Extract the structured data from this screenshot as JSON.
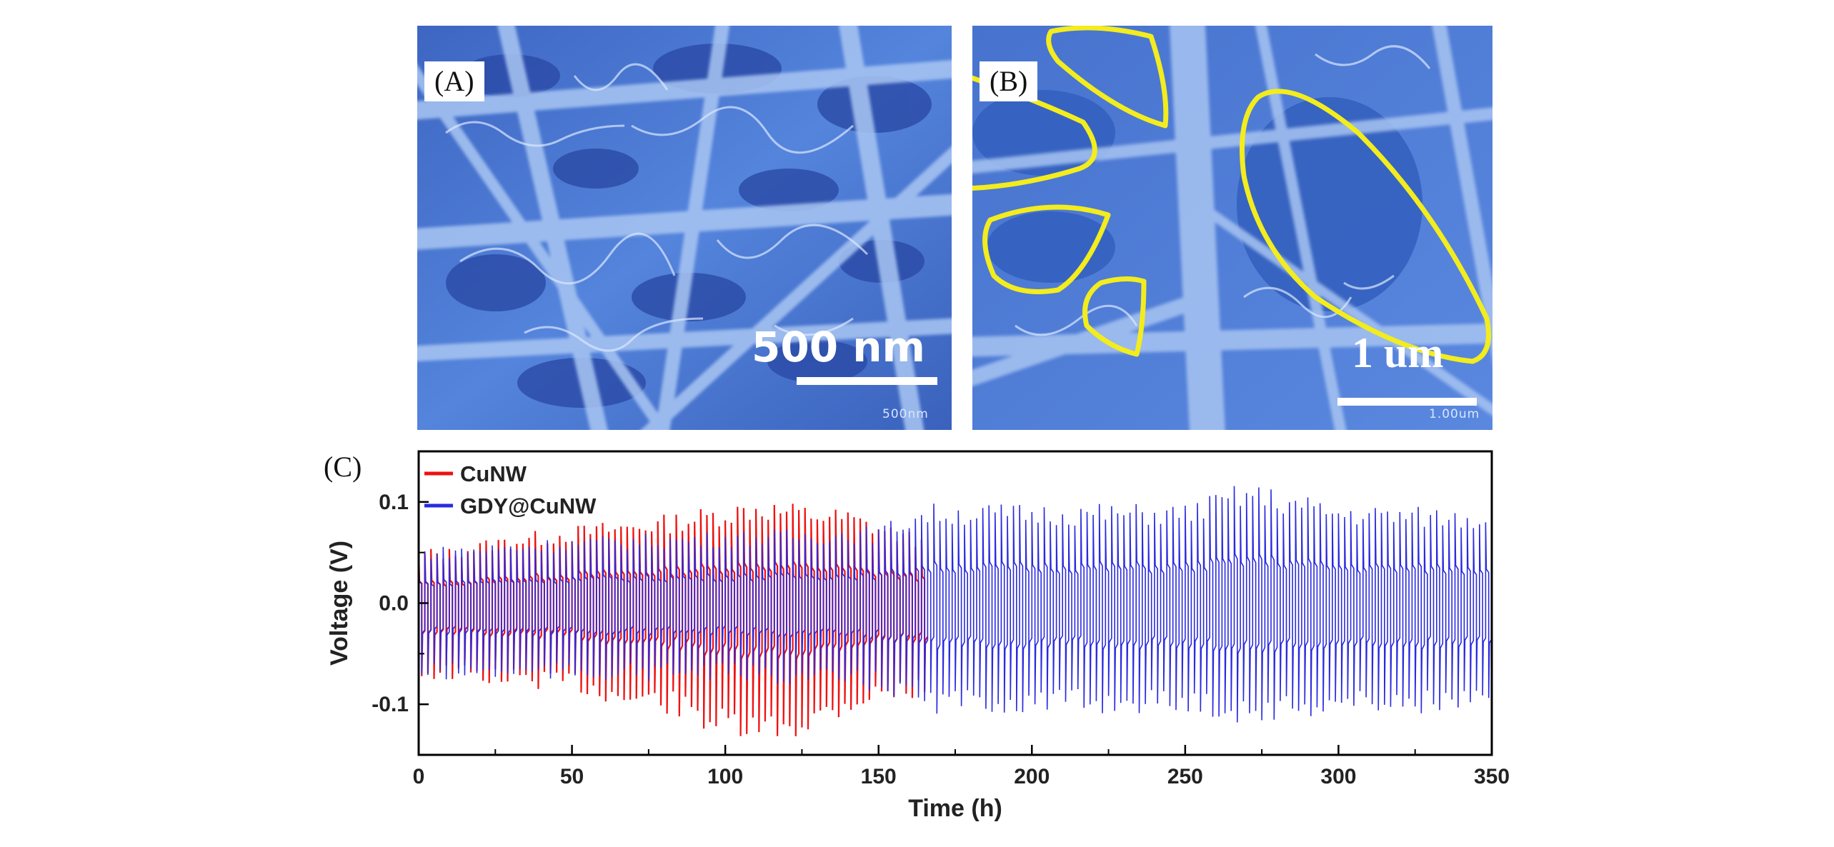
{
  "panel_a": {
    "label": "(A)",
    "scale_text": "500 nm",
    "micro_text": "500nm"
  },
  "panel_b": {
    "label": "(B)",
    "scale_text": "1 um",
    "micro_text": "1.00um"
  },
  "panel_c": {
    "label": "(C)"
  },
  "colors": {
    "cunw": "#ee1111",
    "gdy": "#2a2ae0",
    "sem_bg": "#4f7fd8",
    "highlight": "#f3ec1e"
  },
  "chart_data": {
    "type": "line",
    "xlabel": "Time (h)",
    "ylabel": "Voltage (V)",
    "xlim": [
      0,
      350
    ],
    "ylim": [
      -0.15,
      0.15
    ],
    "xticks": [
      0,
      50,
      100,
      150,
      200,
      250,
      300,
      350
    ],
    "xtick_labels": [
      "0",
      "50",
      "100",
      "150",
      "200",
      "250",
      "300",
      "350"
    ],
    "yticks": [
      -0.1,
      0.0,
      0.1
    ],
    "ytick_labels": [
      "-0.1",
      "0.0",
      "0.1"
    ],
    "legend_position": "top-left",
    "series": [
      {
        "name": "CuNW",
        "color": "#ee1111",
        "x_range": [
          0,
          165
        ],
        "envelope_x": [
          0,
          10,
          25,
          50,
          65,
          80,
          100,
          110,
          125,
          140,
          150,
          165
        ],
        "envelope_upper": [
          0.05,
          0.05,
          0.06,
          0.07,
          0.075,
          0.08,
          0.09,
          0.095,
          0.09,
          0.085,
          0.075,
          0.06
        ],
        "envelope_lower": [
          -0.07,
          -0.07,
          -0.075,
          -0.08,
          -0.095,
          -0.1,
          -0.125,
          -0.13,
          -0.12,
          -0.1,
          -0.09,
          -0.085
        ]
      },
      {
        "name": "GDY@CuNW",
        "color": "#2a2ae0",
        "x_range": [
          0,
          350
        ],
        "envelope_x": [
          0,
          50,
          100,
          150,
          165,
          200,
          250,
          270,
          300,
          350
        ],
        "envelope_upper": [
          0.05,
          0.06,
          0.065,
          0.07,
          0.09,
          0.09,
          0.09,
          0.11,
          0.09,
          0.085
        ],
        "envelope_lower": [
          -0.07,
          -0.07,
          -0.07,
          -0.08,
          -0.1,
          -0.1,
          -0.1,
          -0.11,
          -0.1,
          -0.1
        ]
      }
    ]
  }
}
